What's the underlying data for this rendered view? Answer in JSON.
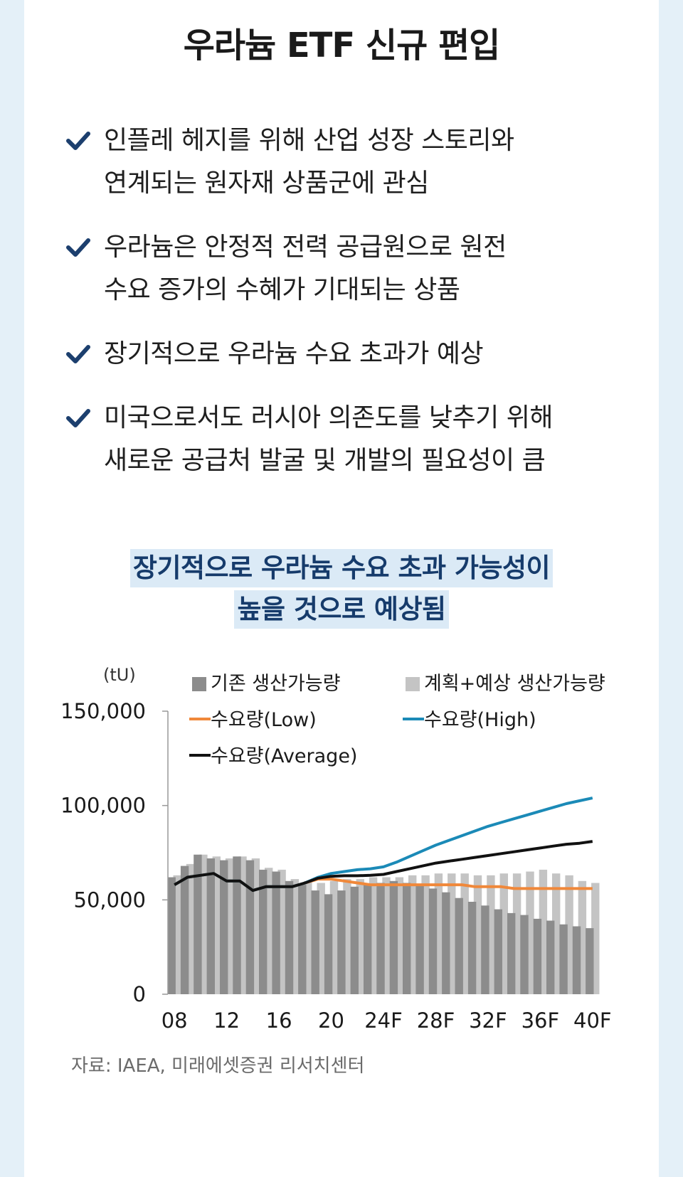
{
  "title": "우라늄 ETF 신규 편입",
  "bullets": [
    {
      "line1": "인플레 헤지를 위해 산업 성장 스토리와",
      "line2": "연계되는 원자재 상품군에 관심"
    },
    {
      "line1": "우라늄은 안정적 전력 공급원으로 원전",
      "line2": "수요 증가의 수혜가 기대되는 상품"
    },
    {
      "line1": "장기적으로 우라늄 수요 초과가 예상",
      "line2": ""
    },
    {
      "line1": "미국으로서도 러시아 의존도를 낮추기 위해",
      "line2": "새로운 공급처 발굴 및 개발의 필요성이 큼"
    }
  ],
  "chart_title": {
    "line1": "장기적으로 우라늄 수요 초과 가능성이",
    "line2": "높을 것으로 예상됨"
  },
  "source": "자료: IAEA, 미래에셋증권 리서치센터",
  "colors": {
    "accent": "#163b6b",
    "check": "#1c3f6e",
    "existing_bar": "#8c8c8c",
    "planned_bar": "#c4c4c4",
    "low": "#f0883a",
    "high": "#1b8ab7",
    "average": "#111111"
  },
  "chart_data": {
    "type": "bar",
    "unit_label": "(tU)",
    "ylim": [
      0,
      150000
    ],
    "yticks": [
      "150,000",
      "100,000",
      "50,000",
      "0"
    ],
    "ytick_values": [
      150000,
      100000,
      50000,
      0
    ],
    "x_start_year": 2008,
    "x_end_year": 2040,
    "xtick_labels": [
      "08",
      "12",
      "16",
      "20",
      "24F",
      "28F",
      "32F",
      "36F",
      "40F"
    ],
    "legend": {
      "existing": "기존 생산가능량",
      "planned": "계획+예상 생산가능량",
      "low": "수요량(Low)",
      "high": "수요량(High)",
      "average": "수요량(Average)"
    },
    "series": [
      {
        "name": "기존 생산가능량",
        "kind": "bar",
        "values": [
          62000,
          68000,
          74000,
          72000,
          71000,
          73000,
          71000,
          66000,
          65000,
          60000,
          58000,
          55000,
          53000,
          55000,
          57000,
          58000,
          59000,
          60000,
          59000,
          58000,
          56000,
          54000,
          51000,
          49000,
          47000,
          45000,
          43000,
          42000,
          40000,
          39000,
          37000,
          36000,
          35000
        ]
      },
      {
        "name": "계획+예상 생산가능량",
        "kind": "bar",
        "values": [
          63000,
          69000,
          74000,
          73000,
          72000,
          73000,
          72000,
          67000,
          66000,
          61000,
          60000,
          59000,
          60000,
          61000,
          61000,
          62000,
          62000,
          62000,
          63000,
          63000,
          64000,
          64000,
          64000,
          63000,
          63000,
          64000,
          64000,
          65000,
          66000,
          64000,
          63000,
          60000,
          59000
        ]
      },
      {
        "name": "수요량(Low)",
        "kind": "line",
        "values": [
          58000,
          62000,
          63000,
          64000,
          60000,
          60000,
          55000,
          57000,
          57000,
          57000,
          59000,
          61000,
          61000,
          60000,
          59000,
          58000,
          58000,
          58000,
          58000,
          58000,
          58000,
          58000,
          58000,
          57000,
          57000,
          57000,
          56000,
          56000,
          56000,
          56000,
          56000,
          56000,
          56000
        ]
      },
      {
        "name": "수요량(High)",
        "kind": "line",
        "values": [
          58000,
          62000,
          63000,
          64000,
          60000,
          60000,
          55000,
          57000,
          57000,
          57000,
          59000,
          62000,
          64000,
          65000,
          66000,
          66500,
          67500,
          70000,
          73000,
          76000,
          79000,
          81500,
          84000,
          86500,
          89000,
          91000,
          93000,
          95000,
          97000,
          99000,
          101000,
          102500,
          104000
        ]
      },
      {
        "name": "수요량(Average)",
        "kind": "line",
        "values": [
          58000,
          62000,
          63000,
          64000,
          60000,
          60000,
          55000,
          57000,
          57000,
          57000,
          59000,
          61500,
          62500,
          62800,
          62800,
          63000,
          63500,
          65000,
          66500,
          68000,
          69500,
          70500,
          71500,
          72500,
          73500,
          74500,
          75500,
          76500,
          77500,
          78500,
          79500,
          80000,
          81000
        ]
      }
    ]
  }
}
